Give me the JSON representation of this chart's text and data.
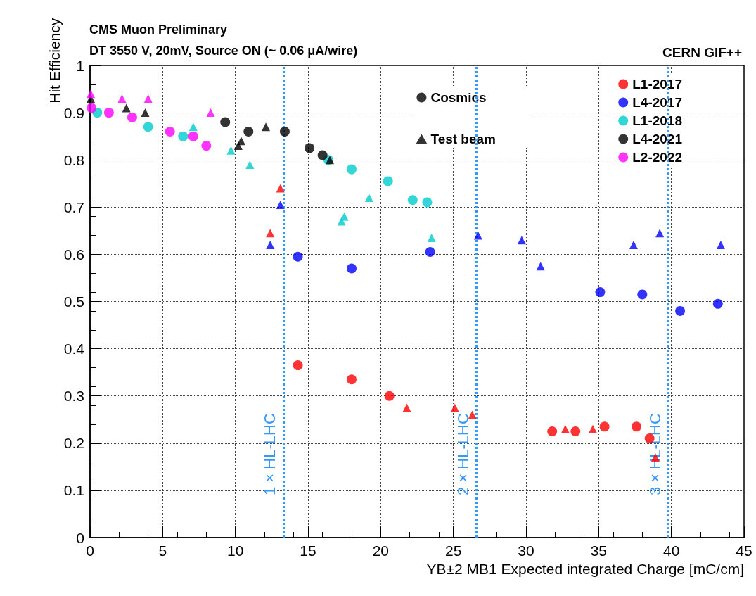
{
  "chart_data": {
    "type": "scatter",
    "title": "CMS Muon Preliminary",
    "subtitle": "DT 3550 V, 20mV, Source ON (~ 0.06 μA/wire)",
    "xlabel": "YB±2 MB1 Expected integrated Charge [mC/cm]",
    "ylabel": "Hit Efficiency",
    "annotations": [
      "CERN GIF++"
    ],
    "xlim": [
      0,
      45
    ],
    "xticks": [
      0,
      5,
      10,
      15,
      20,
      25,
      30,
      35,
      40,
      45
    ],
    "ylim": [
      0,
      1
    ],
    "yticks": [
      0,
      0.1,
      0.2,
      0.3,
      0.4,
      0.5,
      0.6,
      0.7,
      0.8,
      0.9,
      1
    ],
    "grid": true,
    "legend": "top right",
    "ref_lines": [
      {
        "axis": "x",
        "value": 13.3,
        "label": "1 × HL-LHC",
        "color": "#3399ff",
        "line_style": "dotted"
      },
      {
        "axis": "x",
        "value": 26.6,
        "label": "2 × HL-LHC",
        "color": "#3399ff",
        "line_style": "dotted"
      },
      {
        "axis": "x",
        "value": 39.8,
        "label": "3 × HL-LHC",
        "color": "#3399ff",
        "line_style": "dotted"
      }
    ],
    "series": [
      {
        "name": "Cosmics",
        "color": "#000000",
        "marker": "circle"
      },
      {
        "name": "Test beam",
        "color": "#000000",
        "marker": "triangle"
      },
      {
        "name": "L1-2017",
        "color": "#ff0000",
        "marker": "circle",
        "x": [
          14.3,
          18.0,
          20.6,
          31.8,
          33.4,
          35.4,
          37.6,
          38.5
        ],
        "values": [
          0.365,
          0.335,
          0.3,
          0.225,
          0.225,
          0.235,
          0.235,
          0.21
        ]
      },
      {
        "name": "L4-2017",
        "color": "#0000ff",
        "marker": "circle",
        "x": [
          14.3,
          18.0,
          23.4,
          35.1,
          38.0,
          40.6,
          43.2
        ],
        "values": [
          0.595,
          0.57,
          0.605,
          0.52,
          0.515,
          0.48,
          0.495
        ]
      },
      {
        "name": "L1-2018",
        "color": "#00cccc",
        "marker": "circle",
        "x": [
          0.5,
          4.0,
          6.4,
          16.4,
          18.0,
          20.5,
          22.2,
          23.2
        ],
        "values": [
          0.9,
          0.87,
          0.85,
          0.8,
          0.78,
          0.755,
          0.715,
          0.71
        ]
      },
      {
        "name": "L4-2021",
        "color": "#000000",
        "marker": "circle",
        "x": [
          9.3,
          10.9,
          13.4,
          15.1,
          16.0
        ],
        "values": [
          0.88,
          0.86,
          0.86,
          0.825,
          0.81
        ]
      },
      {
        "name": "L2-2022",
        "color": "#ff00ff",
        "marker": "circle",
        "x": [
          0.1,
          1.3,
          2.9,
          5.5,
          7.1,
          8.0
        ],
        "values": [
          0.91,
          0.9,
          0.89,
          0.86,
          0.85,
          0.83
        ]
      },
      {
        "color": "#ff0000",
        "marker": "triangle",
        "x": [
          13.1,
          12.4,
          21.8,
          25.1,
          26.3,
          32.7,
          34.6,
          38.9
        ],
        "values": [
          0.74,
          0.645,
          0.275,
          0.275,
          0.26,
          0.23,
          0.23,
          0.17
        ]
      },
      {
        "color": "#0000ff",
        "marker": "triangle",
        "x": [
          13.1,
          12.4,
          26.7,
          29.7,
          31.0,
          37.4,
          39.2,
          43.4
        ],
        "values": [
          0.705,
          0.62,
          0.64,
          0.63,
          0.575,
          0.62,
          0.645,
          0.62
        ]
      },
      {
        "color": "#00cccc",
        "marker": "triangle",
        "x": [
          7.1,
          9.7,
          11.0,
          19.2,
          17.5,
          17.3,
          23.5
        ],
        "values": [
          0.87,
          0.82,
          0.79,
          0.72,
          0.68,
          0.67,
          0.635
        ]
      },
      {
        "color": "#000000",
        "marker": "triangle",
        "x": [
          0.05,
          2.5,
          3.8,
          10.2,
          10.4,
          12.1,
          16.5
        ],
        "values": [
          0.93,
          0.91,
          0.9,
          0.83,
          0.84,
          0.87,
          0.8
        ]
      },
      {
        "color": "#ff00ff",
        "marker": "triangle",
        "x": [
          0.05,
          2.2,
          4.0,
          8.3
        ],
        "values": [
          0.94,
          0.93,
          0.93,
          0.9
        ]
      }
    ]
  }
}
